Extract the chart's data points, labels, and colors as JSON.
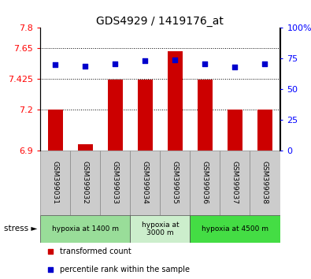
{
  "title": "GDS4929 / 1419176_at",
  "samples": [
    "GSM399031",
    "GSM399032",
    "GSM399033",
    "GSM399034",
    "GSM399035",
    "GSM399036",
    "GSM399037",
    "GSM399038"
  ],
  "red_values": [
    7.2,
    6.95,
    7.42,
    7.42,
    7.63,
    7.42,
    7.2,
    7.2
  ],
  "blue_values": [
    70,
    69,
    71,
    73,
    74,
    71,
    68,
    71
  ],
  "ylim_left": [
    6.9,
    7.8
  ],
  "ylim_right": [
    0,
    100
  ],
  "yticks_left": [
    6.9,
    7.2,
    7.425,
    7.65,
    7.8
  ],
  "ytick_labels_left": [
    "6.9",
    "7.2",
    "7.425",
    "7.65",
    "7.8"
  ],
  "yticks_right": [
    0,
    25,
    50,
    75,
    100
  ],
  "ytick_labels_right": [
    "0",
    "25",
    "50",
    "75",
    "100%"
  ],
  "grid_lines": [
    7.65,
    7.425,
    7.2
  ],
  "bar_color": "#cc0000",
  "dot_color": "#0000cc",
  "bar_width": 0.5,
  "groups": [
    {
      "label": "hypoxia at 1400 m",
      "start": 0,
      "end": 3,
      "color": "#99dd99"
    },
    {
      "label": "hypoxia at\n3000 m",
      "start": 3,
      "end": 5,
      "color": "#cceecc"
    },
    {
      "label": "hypoxia at 4500 m",
      "start": 5,
      "end": 8,
      "color": "#44dd44"
    }
  ],
  "label_bg": "#cccccc",
  "legend_items": [
    {
      "color": "#cc0000",
      "marker": "s",
      "label": "transformed count"
    },
    {
      "color": "#0000cc",
      "marker": "s",
      "label": "percentile rank within the sample"
    }
  ]
}
